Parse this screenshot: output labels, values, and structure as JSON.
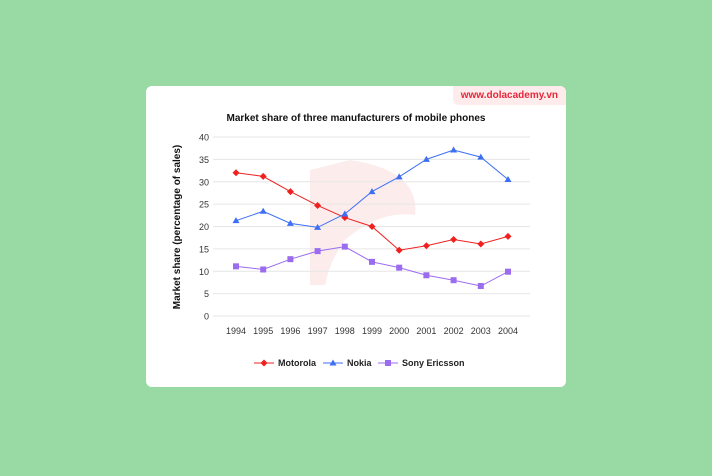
{
  "watermark": "www.dolacademy.vn",
  "chart_data": {
    "type": "line",
    "title": "Market share of three manufacturers of mobile phones",
    "xlabel": "",
    "ylabel": "Market share (percentage of sales)",
    "ylim": [
      0,
      40
    ],
    "yticks": [
      0,
      5,
      10,
      15,
      20,
      25,
      30,
      35,
      40
    ],
    "grid": true,
    "legend": "bottom",
    "categories": [
      "1994",
      "1995",
      "1996",
      "1997",
      "1998",
      "1999",
      "2000",
      "2001",
      "2002",
      "2003",
      "2004"
    ],
    "series": [
      {
        "name": "Motorola",
        "color": "#f0201e",
        "marker": "diamond",
        "values": [
          32,
          31.2,
          27.8,
          24.7,
          22,
          20,
          14.7,
          15.7,
          17.1,
          16.1,
          17.8
        ]
      },
      {
        "name": "Nokia",
        "color": "#3d6ff5",
        "marker": "triangle",
        "values": [
          21.3,
          23.4,
          20.7,
          19.8,
          22.8,
          27.8,
          31.1,
          35,
          37.1,
          35.5,
          30.5
        ]
      },
      {
        "name": "Sony Ericsson",
        "color": "#9b6cf0",
        "marker": "square",
        "values": [
          11.1,
          10.4,
          12.7,
          14.5,
          15.5,
          12.1,
          10.8,
          9.1,
          8,
          6.7,
          9.9
        ]
      }
    ]
  }
}
